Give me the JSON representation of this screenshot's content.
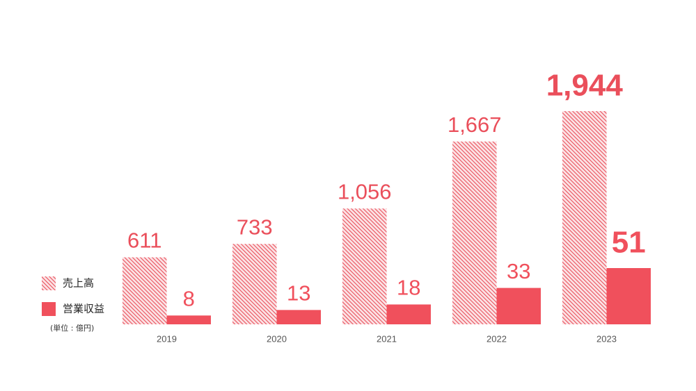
{
  "chart_data": {
    "type": "bar",
    "categories": [
      "2019",
      "2020",
      "2021",
      "2022",
      "2023"
    ],
    "series": [
      {
        "name": "売上高",
        "color": "#ea4f5b",
        "pattern": "hatch",
        "values": [
          611,
          733,
          1056,
          1667,
          1944
        ],
        "value_labels": [
          "611",
          "733",
          "1,056",
          "1,667",
          "1,944"
        ]
      },
      {
        "name": "営業収益",
        "color": "#f0505c",
        "pattern": "solid",
        "axis": "y2",
        "values": [
          8,
          13,
          18,
          33,
          51
        ]
      }
    ],
    "unit_note": "(単位 : 億円)"
  }
}
